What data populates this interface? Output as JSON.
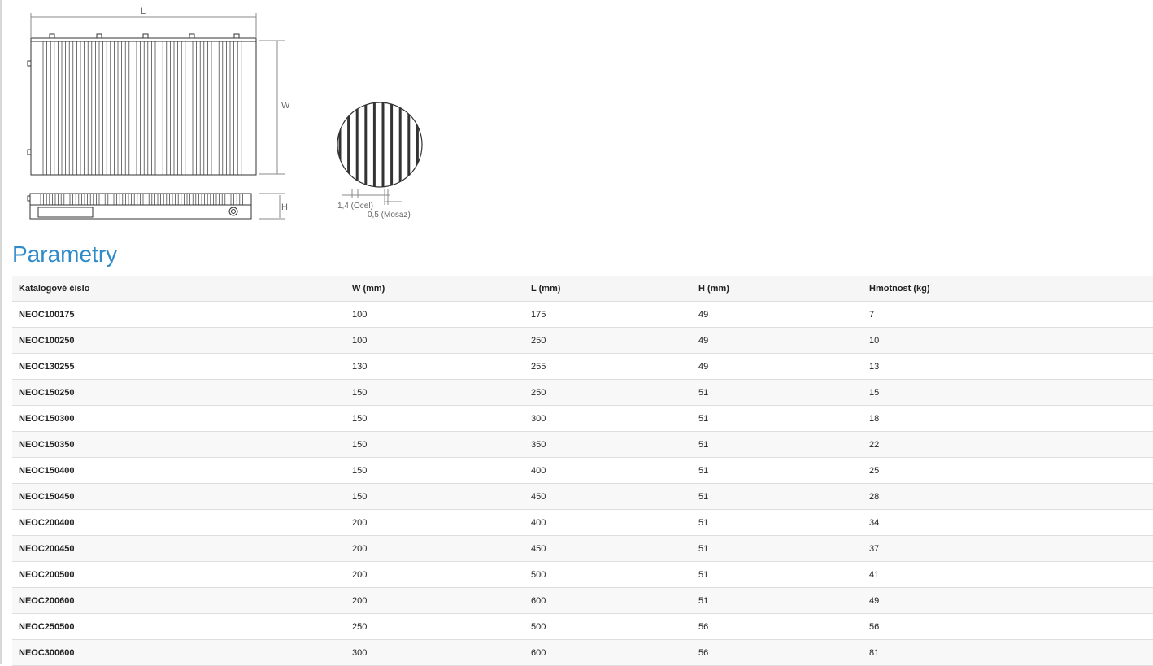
{
  "drawing": {
    "labels": {
      "L": "L",
      "W": "W",
      "H": "H",
      "steel": "1,4 (Ocel)",
      "brass": "0,5 (Mosaz)"
    }
  },
  "section": {
    "title": "Parametry",
    "title_color": "#2e8bc9"
  },
  "table": {
    "headers": [
      "Katalogové číslo",
      "W (mm)",
      "L (mm)",
      "H (mm)",
      "Hmotnost (kg)"
    ],
    "rows": [
      [
        "NEOC100175",
        "100",
        "175",
        "49",
        "7"
      ],
      [
        "NEOC100250",
        "100",
        "250",
        "49",
        "10"
      ],
      [
        "NEOC130255",
        "130",
        "255",
        "49",
        "13"
      ],
      [
        "NEOC150250",
        "150",
        "250",
        "51",
        "15"
      ],
      [
        "NEOC150300",
        "150",
        "300",
        "51",
        "18"
      ],
      [
        "NEOC150350",
        "150",
        "350",
        "51",
        "22"
      ],
      [
        "NEOC150400",
        "150",
        "400",
        "51",
        "25"
      ],
      [
        "NEOC150450",
        "150",
        "450",
        "51",
        "28"
      ],
      [
        "NEOC200400",
        "200",
        "400",
        "51",
        "34"
      ],
      [
        "NEOC200450",
        "200",
        "450",
        "51",
        "37"
      ],
      [
        "NEOC200500",
        "200",
        "500",
        "51",
        "41"
      ],
      [
        "NEOC200600",
        "200",
        "600",
        "51",
        "49"
      ],
      [
        "NEOC250500",
        "250",
        "500",
        "56",
        "56"
      ],
      [
        "NEOC300600",
        "300",
        "600",
        "56",
        "81"
      ]
    ]
  }
}
